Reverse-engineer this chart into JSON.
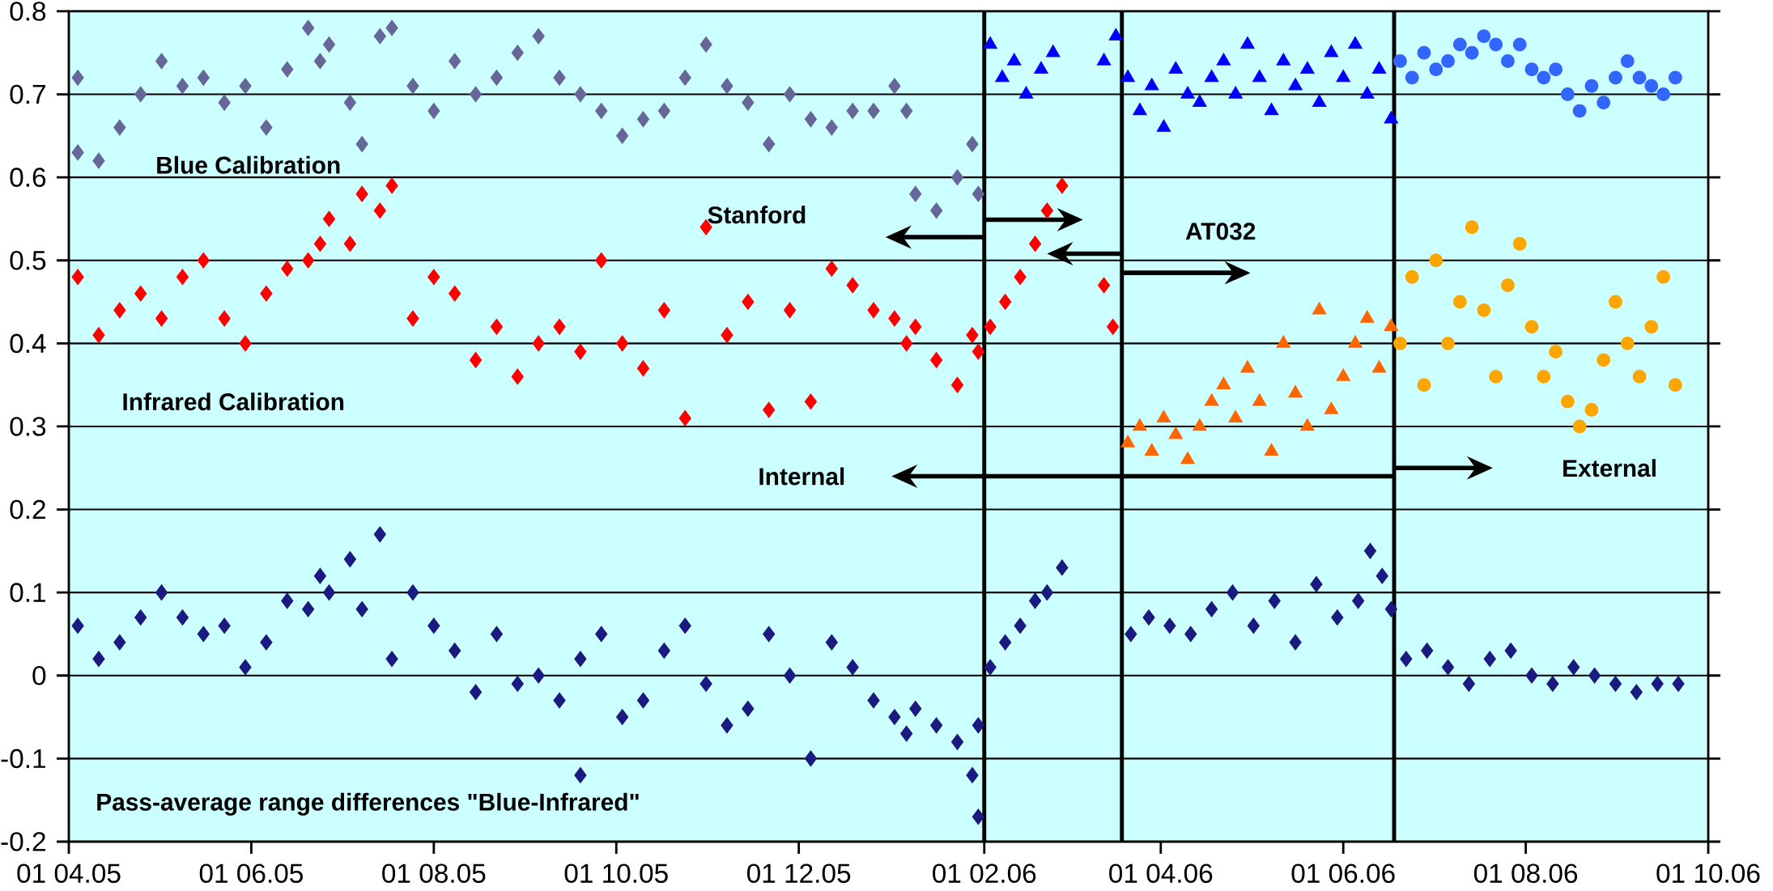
{
  "chart_data": {
    "type": "scatter",
    "xlim": [
      "2005-04-01",
      "2006-10-01"
    ],
    "ylim": [
      -0.2,
      0.8
    ],
    "xticks": [
      {
        "value": "2005-04-01",
        "label": "01 04.05"
      },
      {
        "value": "2005-06-01",
        "label": "01 06.05"
      },
      {
        "value": "2005-08-01",
        "label": "01 08.05"
      },
      {
        "value": "2005-10-01",
        "label": "01 10.05"
      },
      {
        "value": "2005-12-01",
        "label": "01 12.05"
      },
      {
        "value": "2006-02-01",
        "label": "01 02.06"
      },
      {
        "value": "2006-04-01",
        "label": "01 04.06"
      },
      {
        "value": "2006-06-01",
        "label": "01 06.06"
      },
      {
        "value": "2006-08-01",
        "label": "01 08.06"
      },
      {
        "value": "2006-10-01",
        "label": "01 10.06"
      }
    ],
    "yticks": [
      -0.2,
      -0.1,
      0,
      0.1,
      0.2,
      0.3,
      0.4,
      0.5,
      0.6,
      0.7,
      0.8
    ],
    "grid": "y",
    "annotations": [
      "Blue Calibration",
      "Stanford",
      "AT032",
      "Infrared Calibration",
      "Internal",
      "External",
      "Pass-average range differences \"Blue-Infrared\""
    ],
    "ref_lines": [
      {
        "axis": "x",
        "value": "2006-02-01",
        "color": "#000000",
        "line_style": "solid"
      },
      {
        "axis": "x",
        "value": "2006-03-19",
        "color": "#000000",
        "line_style": "solid"
      },
      {
        "axis": "x",
        "value": "2006-06-18",
        "color": "#000000",
        "line_style": "solid"
      }
    ],
    "series": [
      {
        "color": "#666699",
        "marker": "diamond",
        "x": [
          "2005-04-04",
          "2005-04-04",
          "2005-04-11",
          "2005-04-18",
          "2005-04-25",
          "2005-05-02",
          "2005-05-09",
          "2005-05-16",
          "2005-05-23",
          "2005-05-30",
          "2005-06-06",
          "2005-06-13",
          "2005-06-20",
          "2005-06-24",
          "2005-06-27",
          "2005-07-04",
          "2005-07-08",
          "2005-07-14",
          "2005-07-18",
          "2005-07-25",
          "2005-08-01",
          "2005-08-08",
          "2005-08-15",
          "2005-08-22",
          "2005-08-29",
          "2005-09-05",
          "2005-09-12",
          "2005-09-19",
          "2005-09-26",
          "2005-10-03",
          "2005-10-10",
          "2005-10-17",
          "2005-10-24",
          "2005-10-31",
          "2005-11-07",
          "2005-11-14",
          "2005-11-21",
          "2005-11-28",
          "2005-12-05",
          "2005-12-12",
          "2005-12-19",
          "2005-12-26",
          "2006-01-02",
          "2006-01-06",
          "2006-01-09",
          "2006-01-16",
          "2006-01-23",
          "2006-01-28",
          "2006-01-30"
        ],
        "values": [
          0.72,
          0.63,
          0.62,
          0.66,
          0.7,
          0.74,
          0.71,
          0.72,
          0.69,
          0.71,
          0.66,
          0.73,
          0.78,
          0.74,
          0.76,
          0.69,
          0.64,
          0.77,
          0.78,
          0.71,
          0.68,
          0.74,
          0.7,
          0.72,
          0.75,
          0.77,
          0.72,
          0.7,
          0.68,
          0.65,
          0.67,
          0.68,
          0.72,
          0.76,
          0.71,
          0.69,
          0.64,
          0.7,
          0.67,
          0.66,
          0.68,
          0.68,
          0.71,
          0.68,
          0.58,
          0.56,
          0.6,
          0.64,
          0.58
        ]
      },
      {
        "color": "#0000ff",
        "marker": "triangle",
        "x": [
          "2006-02-03",
          "2006-02-07",
          "2006-02-11",
          "2006-02-15",
          "2006-02-20",
          "2006-02-24",
          "2006-03-13",
          "2006-03-17",
          "2006-03-21",
          "2006-03-25",
          "2006-03-29",
          "2006-04-02",
          "2006-04-06",
          "2006-04-10",
          "2006-04-14",
          "2006-04-18",
          "2006-04-22",
          "2006-04-26",
          "2006-04-30",
          "2006-05-04",
          "2006-05-08",
          "2006-05-12",
          "2006-05-16",
          "2006-05-20",
          "2006-05-24",
          "2006-05-28",
          "2006-06-01",
          "2006-06-05",
          "2006-06-09",
          "2006-06-13",
          "2006-06-17"
        ],
        "values": [
          0.76,
          0.72,
          0.74,
          0.7,
          0.73,
          0.75,
          0.74,
          0.77,
          0.72,
          0.68,
          0.71,
          0.66,
          0.73,
          0.7,
          0.69,
          0.72,
          0.74,
          0.7,
          0.76,
          0.72,
          0.68,
          0.74,
          0.71,
          0.73,
          0.69,
          0.75,
          0.72,
          0.76,
          0.7,
          0.73,
          0.67
        ]
      },
      {
        "color": "#3366ff",
        "marker": "circle",
        "x": [
          "2006-06-20",
          "2006-06-24",
          "2006-06-28",
          "2006-07-02",
          "2006-07-06",
          "2006-07-10",
          "2006-07-14",
          "2006-07-18",
          "2006-07-22",
          "2006-07-26",
          "2006-07-30",
          "2006-08-03",
          "2006-08-07",
          "2006-08-11",
          "2006-08-15",
          "2006-08-19",
          "2006-08-23",
          "2006-08-27",
          "2006-08-31",
          "2006-09-04",
          "2006-09-08",
          "2006-09-12",
          "2006-09-16",
          "2006-09-20"
        ],
        "values": [
          0.74,
          0.72,
          0.75,
          0.73,
          0.74,
          0.76,
          0.75,
          0.77,
          0.76,
          0.74,
          0.76,
          0.73,
          0.72,
          0.73,
          0.7,
          0.68,
          0.71,
          0.69,
          0.72,
          0.74,
          0.72,
          0.71,
          0.7,
          0.72
        ]
      },
      {
        "color": "#ff0000",
        "marker": "diamond",
        "x": [
          "2005-04-04",
          "2005-04-11",
          "2005-04-18",
          "2005-04-25",
          "2005-05-02",
          "2005-05-09",
          "2005-05-16",
          "2005-05-23",
          "2005-05-30",
          "2005-06-06",
          "2005-06-13",
          "2005-06-20",
          "2005-06-24",
          "2005-06-27",
          "2005-07-04",
          "2005-07-08",
          "2005-07-14",
          "2005-07-18",
          "2005-07-25",
          "2005-08-01",
          "2005-08-08",
          "2005-08-15",
          "2005-08-22",
          "2005-08-29",
          "2005-09-05",
          "2005-09-12",
          "2005-09-19",
          "2005-09-26",
          "2005-10-03",
          "2005-10-10",
          "2005-10-17",
          "2005-10-24",
          "2005-10-31",
          "2005-11-07",
          "2005-11-14",
          "2005-11-21",
          "2005-11-28",
          "2005-12-05",
          "2005-12-12",
          "2005-12-19",
          "2005-12-26",
          "2006-01-02",
          "2006-01-06",
          "2006-01-09",
          "2006-01-16",
          "2006-01-23",
          "2006-01-28",
          "2006-01-30",
          "2006-02-03",
          "2006-02-08",
          "2006-02-13",
          "2006-02-18",
          "2006-02-22",
          "2006-02-27",
          "2006-03-13",
          "2006-03-16"
        ],
        "values": [
          0.48,
          0.41,
          0.44,
          0.46,
          0.43,
          0.48,
          0.5,
          0.43,
          0.4,
          0.46,
          0.49,
          0.5,
          0.52,
          0.55,
          0.52,
          0.58,
          0.56,
          0.59,
          0.43,
          0.48,
          0.46,
          0.38,
          0.42,
          0.36,
          0.4,
          0.42,
          0.39,
          0.5,
          0.4,
          0.37,
          0.44,
          0.31,
          0.54,
          0.41,
          0.45,
          0.32,
          0.44,
          0.33,
          0.49,
          0.47,
          0.44,
          0.43,
          0.4,
          0.42,
          0.38,
          0.35,
          0.41,
          0.39,
          0.42,
          0.45,
          0.48,
          0.52,
          0.56,
          0.59,
          0.47,
          0.42
        ]
      },
      {
        "color": "#ff6600",
        "marker": "triangle",
        "x": [
          "2006-03-21",
          "2006-03-25",
          "2006-03-29",
          "2006-04-02",
          "2006-04-06",
          "2006-04-10",
          "2006-04-14",
          "2006-04-18",
          "2006-04-22",
          "2006-04-26",
          "2006-04-30",
          "2006-05-04",
          "2006-05-08",
          "2006-05-12",
          "2006-05-16",
          "2006-05-20",
          "2006-05-24",
          "2006-05-28",
          "2006-06-01",
          "2006-06-05",
          "2006-06-09",
          "2006-06-13",
          "2006-06-17"
        ],
        "values": [
          0.28,
          0.3,
          0.27,
          0.31,
          0.29,
          0.26,
          0.3,
          0.33,
          0.35,
          0.31,
          0.37,
          0.33,
          0.27,
          0.4,
          0.34,
          0.3,
          0.44,
          0.32,
          0.36,
          0.4,
          0.43,
          0.37,
          0.42
        ]
      },
      {
        "color": "#ffa500",
        "marker": "circle",
        "x": [
          "2006-06-20",
          "2006-06-24",
          "2006-06-28",
          "2006-07-02",
          "2006-07-06",
          "2006-07-10",
          "2006-07-14",
          "2006-07-18",
          "2006-07-22",
          "2006-07-26",
          "2006-07-30",
          "2006-08-03",
          "2006-08-07",
          "2006-08-11",
          "2006-08-15",
          "2006-08-19",
          "2006-08-23",
          "2006-08-27",
          "2006-08-31",
          "2006-09-04",
          "2006-09-08",
          "2006-09-12",
          "2006-09-16",
          "2006-09-20"
        ],
        "values": [
          0.4,
          0.48,
          0.35,
          0.5,
          0.4,
          0.45,
          0.54,
          0.44,
          0.36,
          0.47,
          0.52,
          0.42,
          0.36,
          0.39,
          0.33,
          0.3,
          0.32,
          0.38,
          0.45,
          0.4,
          0.36,
          0.42,
          0.48,
          0.35
        ]
      },
      {
        "color": "#1a1a80",
        "marker": "diamond",
        "x": [
          "2005-04-04",
          "2005-04-11",
          "2005-04-18",
          "2005-04-25",
          "2005-05-02",
          "2005-05-09",
          "2005-05-16",
          "2005-05-23",
          "2005-05-30",
          "2005-06-06",
          "2005-06-13",
          "2005-06-20",
          "2005-06-24",
          "2005-06-27",
          "2005-07-04",
          "2005-07-08",
          "2005-07-14",
          "2005-07-18",
          "2005-07-25",
          "2005-08-01",
          "2005-08-08",
          "2005-08-15",
          "2005-08-22",
          "2005-08-29",
          "2005-09-05",
          "2005-09-12",
          "2005-09-19",
          "2005-09-19",
          "2005-09-26",
          "2005-10-03",
          "2005-10-10",
          "2005-10-17",
          "2005-10-24",
          "2005-10-31",
          "2005-11-07",
          "2005-11-14",
          "2005-11-21",
          "2005-11-28",
          "2005-12-05",
          "2005-12-12",
          "2005-12-19",
          "2005-12-26",
          "2006-01-02",
          "2006-01-06",
          "2006-01-09",
          "2006-01-16",
          "2006-01-23",
          "2006-01-28",
          "2006-01-30",
          "2006-01-30",
          "2006-02-03",
          "2006-02-08",
          "2006-02-13",
          "2006-02-18",
          "2006-02-22",
          "2006-02-27",
          "2006-03-22",
          "2006-03-28",
          "2006-04-04",
          "2006-04-11",
          "2006-04-18",
          "2006-04-25",
          "2006-05-02",
          "2006-05-09",
          "2006-05-16",
          "2006-05-23",
          "2006-05-30",
          "2006-06-06",
          "2006-06-10",
          "2006-06-14",
          "2006-06-17",
          "2006-06-22",
          "2006-06-29",
          "2006-07-06",
          "2006-07-13",
          "2006-07-20",
          "2006-07-27",
          "2006-08-03",
          "2006-08-10",
          "2006-08-17",
          "2006-08-24",
          "2006-08-31",
          "2006-09-07",
          "2006-09-14",
          "2006-09-21"
        ],
        "values": [
          0.06,
          0.02,
          0.04,
          0.07,
          0.1,
          0.07,
          0.05,
          0.06,
          0.01,
          0.04,
          0.09,
          0.08,
          0.12,
          0.1,
          0.14,
          0.08,
          0.17,
          0.02,
          0.1,
          0.06,
          0.03,
          -0.02,
          0.05,
          -0.01,
          0.0,
          -0.03,
          0.02,
          -0.12,
          0.05,
          -0.05,
          -0.03,
          0.03,
          0.06,
          -0.01,
          -0.06,
          -0.04,
          0.05,
          0.0,
          -0.1,
          0.04,
          0.01,
          -0.03,
          -0.05,
          -0.07,
          -0.04,
          -0.06,
          -0.08,
          -0.12,
          -0.06,
          -0.17,
          0.01,
          0.04,
          0.06,
          0.09,
          0.1,
          0.13,
          0.05,
          0.07,
          0.06,
          0.05,
          0.08,
          0.1,
          0.06,
          0.09,
          0.04,
          0.11,
          0.07,
          0.09,
          0.15,
          0.12,
          0.08,
          0.02,
          0.03,
          0.01,
          -0.01,
          0.02,
          0.03,
          0.0,
          -0.01,
          0.01,
          0.0,
          -0.01,
          -0.02,
          -0.01,
          -0.01
        ]
      }
    ]
  }
}
